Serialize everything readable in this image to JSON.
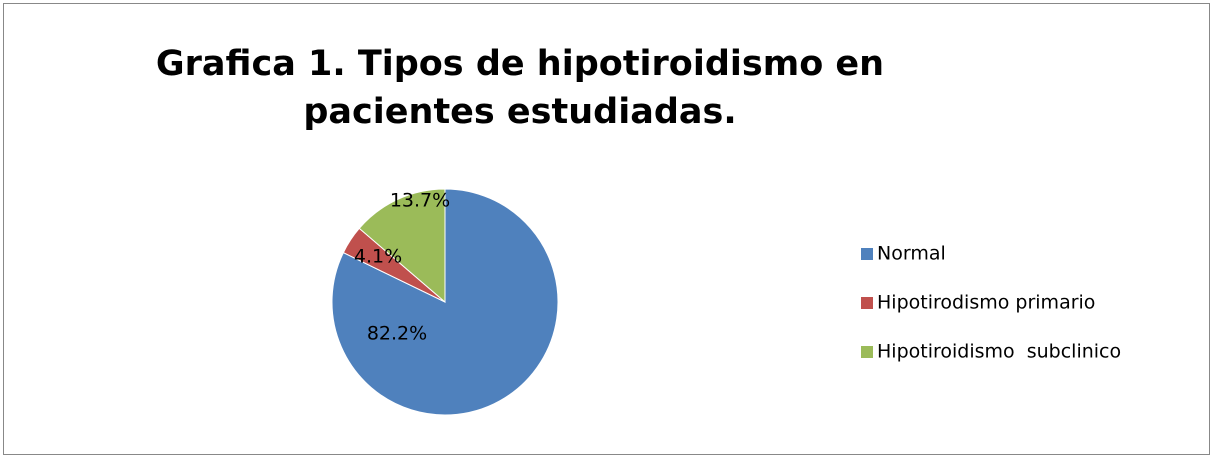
{
  "chart_data": {
    "type": "pie",
    "title": "Grafica 1. Tipos de hipotiroidismo en pacientes estudiadas.",
    "categories": [
      "Normal",
      "Hipotirodismo primario",
      "Hipotiroidismo  subclinico"
    ],
    "values": [
      82.2,
      4.1,
      13.7
    ],
    "value_labels": [
      "82.2%",
      "4.1%",
      "13.7%"
    ],
    "colors": [
      "#4f81bd",
      "#c0504d",
      "#9bbb59"
    ],
    "legend": "right"
  }
}
